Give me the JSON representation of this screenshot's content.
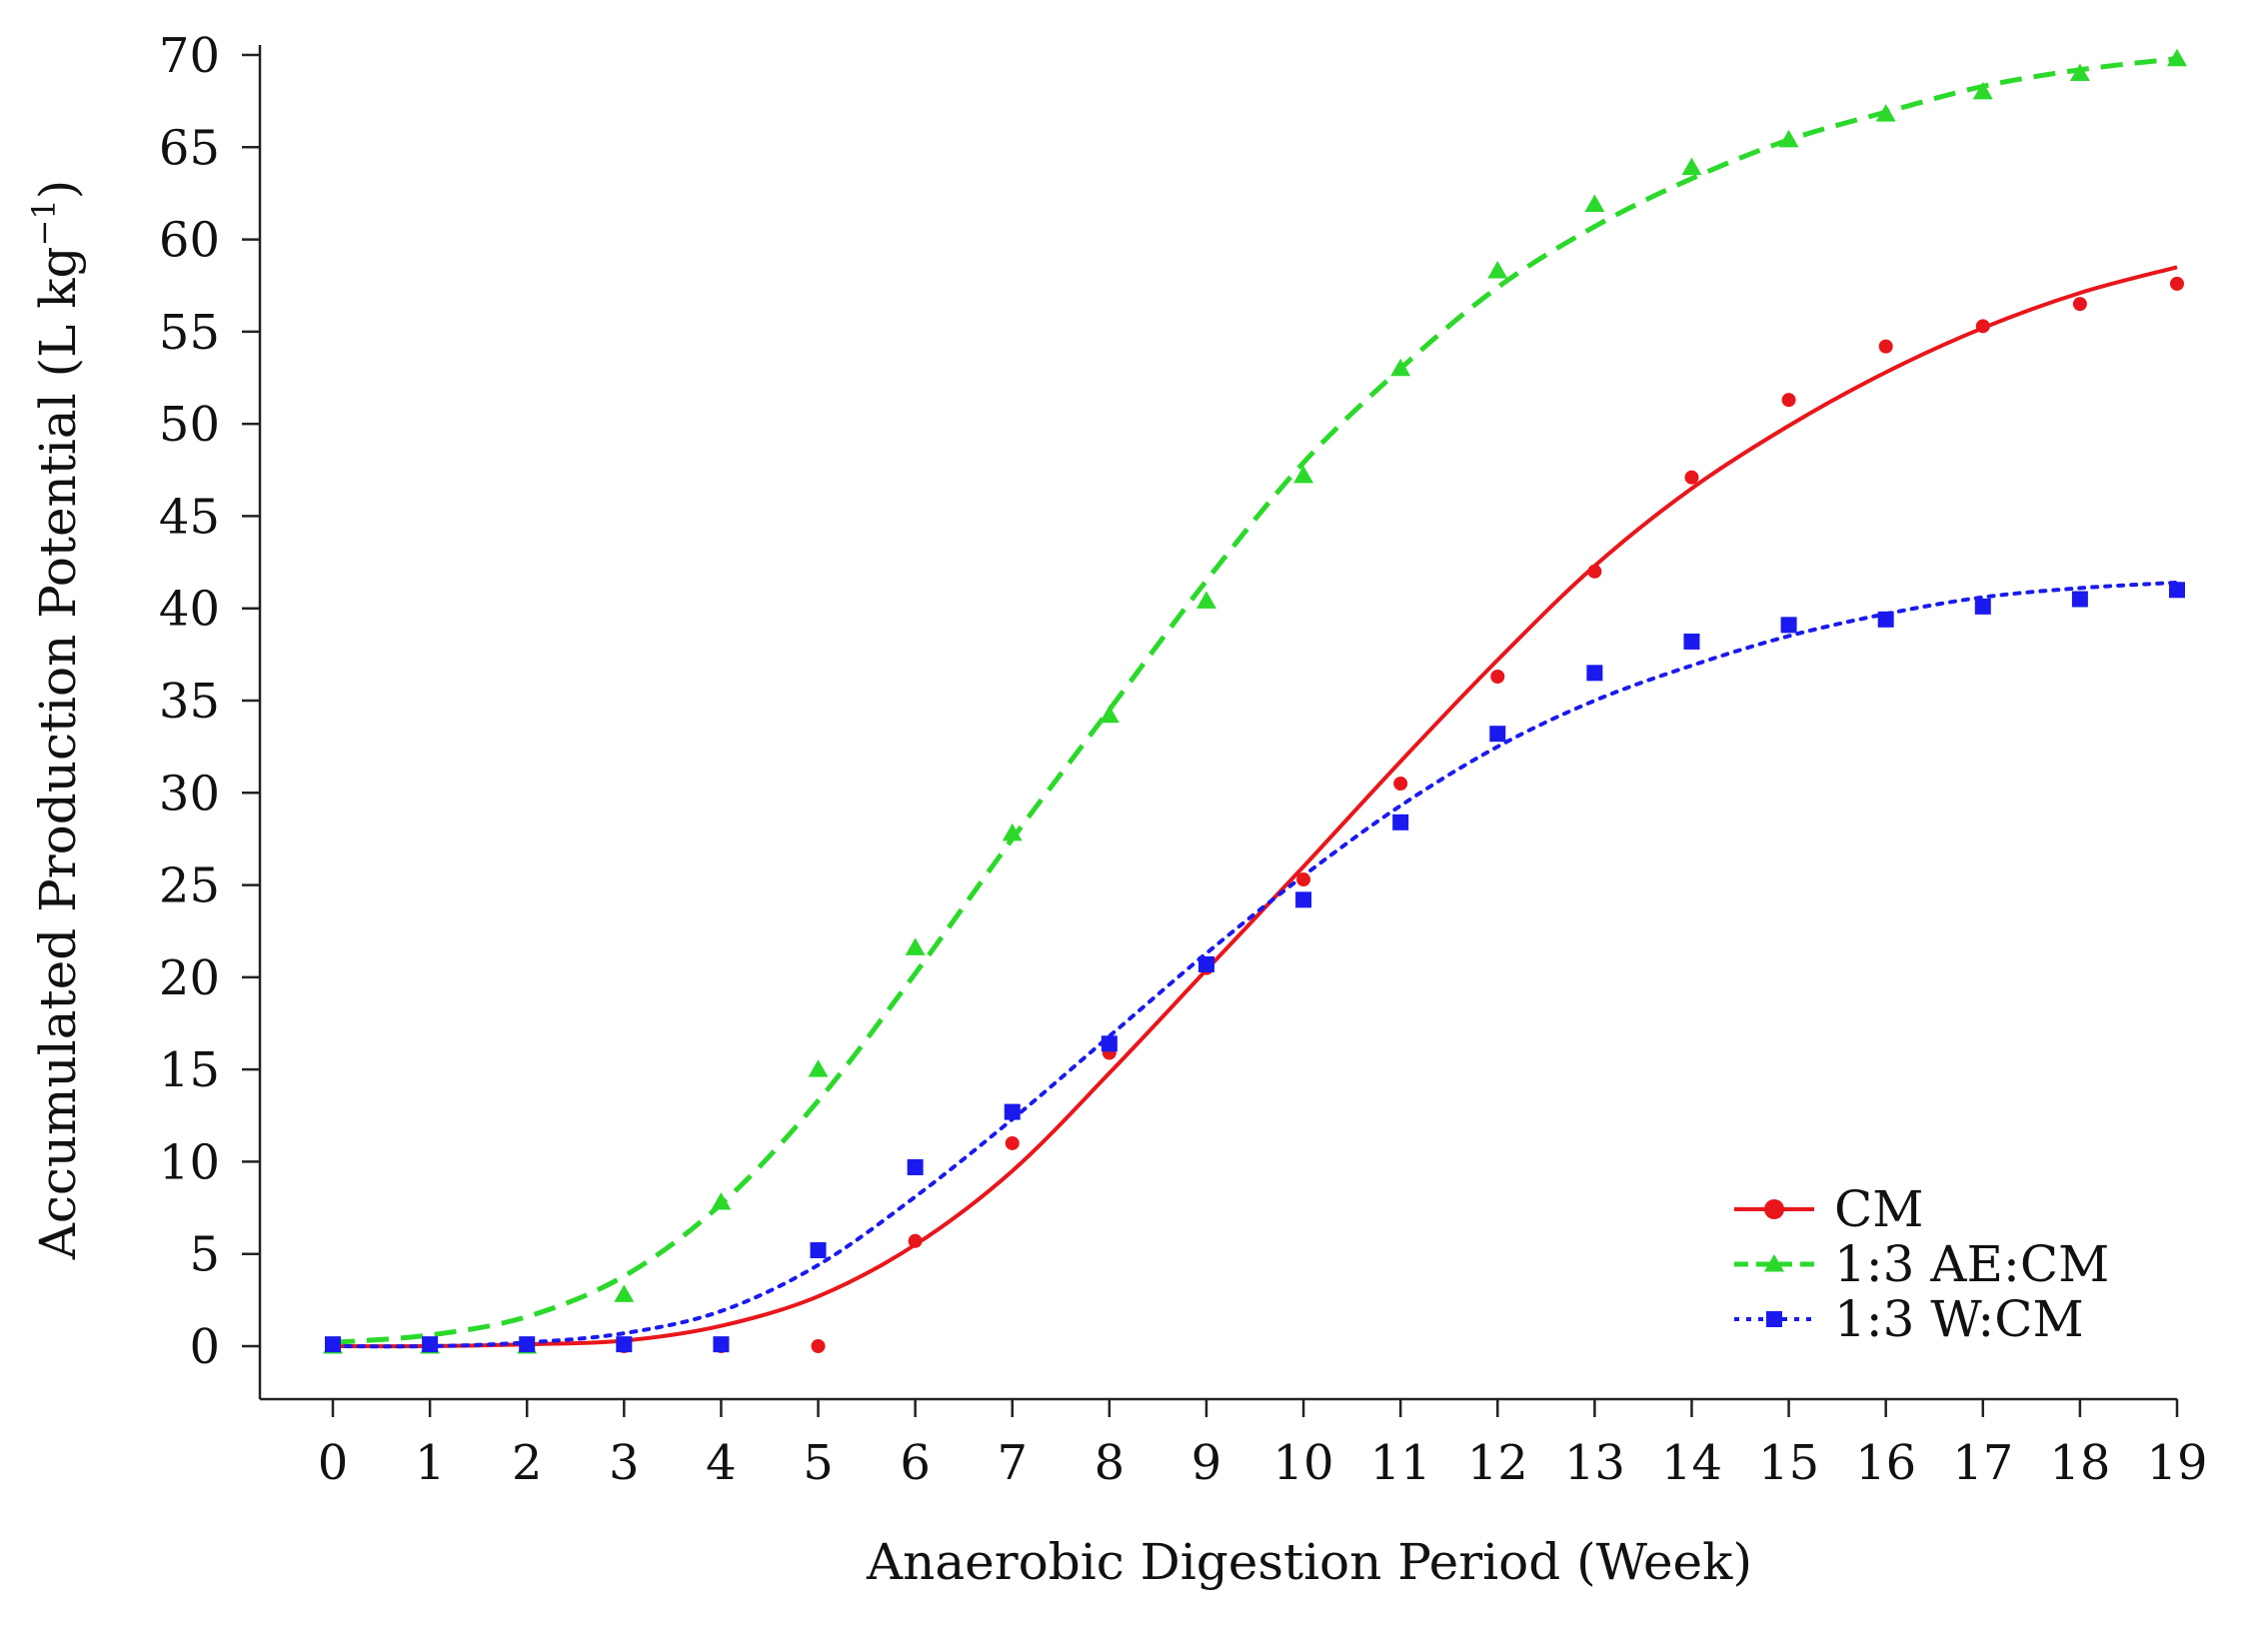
{
  "chart_data": {
    "type": "line",
    "title": "",
    "xlabel": "Anaerobic Digestion Period (Week)",
    "ylabel": "Accumulated Production Potential (L kg",
    "ylabel_superscript": "−1",
    "ylabel_close": ")",
    "xlim": [
      0,
      19
    ],
    "ylim": [
      0,
      70
    ],
    "x_ticks": [
      "0",
      "1",
      "2",
      "3",
      "4",
      "5",
      "6",
      "7",
      "8",
      "9",
      "10",
      "11",
      "12",
      "13",
      "14",
      "15",
      "16",
      "17",
      "18",
      "19"
    ],
    "y_ticks": [
      "0",
      "5",
      "10",
      "15",
      "20",
      "25",
      "30",
      "35",
      "40",
      "45",
      "50",
      "55",
      "60",
      "65",
      "70"
    ],
    "grid": false,
    "legend_position": "bottom-right",
    "x": [
      0,
      1,
      2,
      3,
      4,
      5,
      6,
      7,
      8,
      9,
      10,
      11,
      12,
      13,
      14,
      15,
      16,
      17,
      18,
      19
    ],
    "series": [
      {
        "name": "CM",
        "color": "#e8161b",
        "line_style": "solid",
        "marker": "circle",
        "values": [
          0,
          0,
          0,
          0,
          0,
          0,
          5.7,
          11,
          15.9,
          20.5,
          25.3,
          30.5,
          36.3,
          42,
          47.1,
          51.3,
          54.2,
          55.3,
          56.5,
          57.6
        ],
        "fit": [
          0,
          0,
          0.1,
          0.3,
          1.1,
          2.7,
          5.5,
          9.5,
          14.8,
          20.4,
          26,
          31.7,
          37.2,
          42.3,
          46.5,
          49.9,
          52.8,
          55.2,
          57.1,
          58.5
        ]
      },
      {
        "name": "1:3 AE:CM",
        "color": "#2bd92b",
        "line_style": "dashed",
        "marker": "triangle",
        "values": [
          0,
          0,
          0,
          2.8,
          7.8,
          15,
          21.6,
          27.8,
          34.2,
          40.4,
          47.2,
          53,
          58.3,
          61.9,
          63.9,
          65.4,
          66.8,
          68,
          69,
          69.8
        ],
        "fit": [
          0.2,
          0.6,
          1.6,
          3.8,
          7.7,
          13.3,
          20.2,
          27.5,
          34.5,
          41.5,
          47.9,
          53,
          57.4,
          60.7,
          63.3,
          65.4,
          66.9,
          68.3,
          69.2,
          69.8
        ]
      },
      {
        "name": "1:3 W:CM",
        "color": "#1a1aee",
        "line_style": "dotted",
        "marker": "square",
        "values": [
          0.1,
          0.1,
          0.1,
          0.1,
          0.1,
          5.2,
          9.7,
          12.7,
          16.4,
          20.7,
          24.2,
          28.4,
          33.2,
          36.5,
          38.2,
          39.1,
          39.4,
          40.1,
          40.5,
          41
        ],
        "fit": [
          0,
          0,
          0.2,
          0.7,
          1.9,
          4.4,
          8.1,
          12.3,
          16.8,
          21.3,
          25.5,
          29.3,
          32.5,
          35,
          36.9,
          38.5,
          39.7,
          40.6,
          41.1,
          41.4
        ]
      }
    ]
  }
}
